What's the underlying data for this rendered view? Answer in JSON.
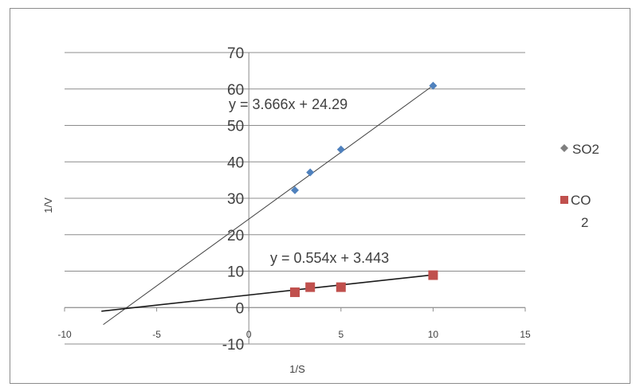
{
  "chart_data": {
    "type": "scatter",
    "xlabel": "1/S",
    "ylabel": "1/V",
    "xlim": [
      -10,
      15
    ],
    "ylim": [
      -10,
      70
    ],
    "xticks": [
      -10,
      -5,
      0,
      5,
      10,
      15
    ],
    "yticks": [
      -10,
      0,
      10,
      20,
      30,
      40,
      50,
      60,
      70
    ],
    "grid": "horizontal",
    "legend_position": "right",
    "series": [
      {
        "name": "SO2",
        "marker": "diamond",
        "color": "#4f81bd",
        "points": [
          [
            2.5,
            32.2
          ],
          [
            3.33,
            37.1
          ],
          [
            5,
            43.4
          ],
          [
            10,
            60.9
          ]
        ],
        "trendline": {
          "slope": 3.666,
          "intercept": 24.29,
          "x_range": [
            -7.9,
            10
          ],
          "label": "y = 3.666x + 24.29",
          "color": "#404040"
        }
      },
      {
        "name": "CO2",
        "marker": "square",
        "color": "#c0504d",
        "points": [
          [
            2.5,
            4.2
          ],
          [
            3.33,
            5.6
          ],
          [
            5,
            5.6
          ],
          [
            10,
            8.9
          ]
        ],
        "trendline": {
          "slope": 0.554,
          "intercept": 3.443,
          "x_range": [
            -8,
            10
          ],
          "label": "y = 0.554x + 3.443",
          "color": "#1a1a1a"
        }
      }
    ],
    "legend": [
      {
        "line1": "SO2",
        "line2": ""
      },
      {
        "line1": "CO",
        "line2": "2"
      }
    ]
  }
}
